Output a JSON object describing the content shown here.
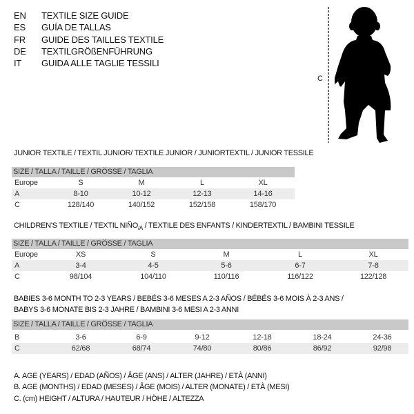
{
  "header": [
    {
      "code": "EN",
      "title": "TEXTILE SIZE GUIDE"
    },
    {
      "code": "ES",
      "title": "GUÍA DE TALLAS"
    },
    {
      "code": "FR",
      "title": "GUIDE DES TAILLES TEXTILE"
    },
    {
      "code": "DE",
      "title": "TEXTILGRÖßENFÜHRUNG"
    },
    {
      "code": "IT",
      "title": "GUIDA ALLE TAGLIE TESSILI"
    }
  ],
  "figure": {
    "measure_label": "C",
    "icon": "baby-silhouette-icon"
  },
  "size_header": "SIZE / TALLA / TAILLE / GRÖSSE / TAGLIA",
  "junior": {
    "title": "JUNIOR TEXTILE / TEXTIL JUNIOR/ TEXTILE JUNIOR / JUNIORTEXTIL / JUNIOR TESSILE",
    "rows": [
      {
        "label": "Europe",
        "values": [
          "S",
          "M",
          "L",
          "XL"
        ]
      },
      {
        "label": "A",
        "values": [
          "8-10",
          "10-12",
          "12-13",
          "14-16"
        ]
      },
      {
        "label": "C",
        "values": [
          "128/140",
          "140/152",
          "152/158",
          "158/170"
        ]
      }
    ]
  },
  "children": {
    "title_a": "CHILDREN'S TEXTILE / TEXTIL NIÑO",
    "title_sub": "/A",
    "title_b": " / TEXTILE DES ENFANTS / KINDERTEXTIL / BAMBINI TESSILE",
    "rows": [
      {
        "label": "Europe",
        "values": [
          "XS",
          "S",
          "M",
          "L",
          "XL"
        ]
      },
      {
        "label": "A",
        "values": [
          "3-4",
          "4-5",
          "5-6",
          "6-7",
          "7-8"
        ]
      },
      {
        "label": "C",
        "values": [
          "98/104",
          "104/110",
          "110/116",
          "116/122",
          "122/128"
        ]
      }
    ]
  },
  "babies": {
    "title_line1": "BABIES 3-6 MONTH TO 2-3 YEARS / BEBÉS 3-6 MESES A 2-3 AÑOS / BÉBÉS 3-6 MOIS À 2-3 ANS /",
    "title_line2": "BABYS 3-6 MONATE BIS 2-3 JAHRE / BAMBINI 3-6 MESI A 2-3 ANNI",
    "rows": [
      {
        "label": "B",
        "values": [
          "3-6",
          "6-9",
          "9-12",
          "12-18",
          "18-24",
          "24-36"
        ]
      },
      {
        "label": "C",
        "values": [
          "62/68",
          "68/74",
          "74/80",
          "80/86",
          "86/92",
          "92/98"
        ]
      }
    ]
  },
  "legend": [
    "A. AGE (YEARS) / EDAD (AÑOS) / ÂGE (ANS) / ALTER (JAHRE) / ETÀ (ANNI)",
    "B. AGE (MONTHS) / EDAD (MESES) / ÂGE (MOIS) / ALTER (MONATE) / ETÀ (MESI)",
    "C. (cm) HEIGHT / ALTURA / HAUTEUR / HÖHE / ALTEZZA"
  ],
  "colors": {
    "header_bar": "#c9c9c9",
    "row_shade": "#ececec"
  }
}
